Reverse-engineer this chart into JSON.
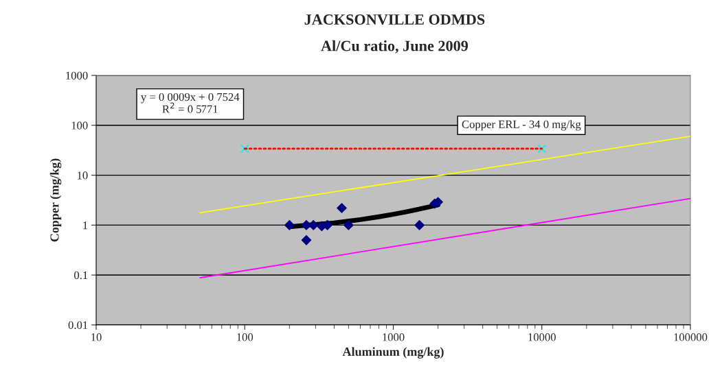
{
  "chart_data": {
    "type": "scatter",
    "title": "JACKSONVILLE ODMDS",
    "subtitle": "Al/Cu ratio, June 2009",
    "xlabel": "Aluminum (mg/kg)",
    "ylabel": "Copper (mg/kg)",
    "log": "xy",
    "xlim": [
      10,
      100000
    ],
    "ylim": [
      0.01,
      1000
    ],
    "xticks": [
      10,
      100,
      1000,
      10000,
      100000
    ],
    "yticks": [
      0.01,
      0.1,
      1,
      10,
      100,
      1000
    ],
    "grid": "y",
    "legend": false,
    "series": [
      {
        "type": "line",
        "color": "#ffff00",
        "line_style": "solid",
        "marker": "none",
        "x": [
          50,
          100000
        ],
        "values": [
          1.77,
          60
        ]
      },
      {
        "type": "line",
        "color": "#ff00ff",
        "line_style": "solid",
        "marker": "none",
        "x": [
          50,
          100000
        ],
        "values": [
          0.088,
          3.4
        ]
      },
      {
        "type": "line",
        "color": "#ff0000",
        "line_style": "dotted",
        "marker": "none",
        "x": [
          100,
          10000
        ],
        "values": [
          34,
          34
        ]
      },
      {
        "color": "#33e6e6",
        "marker": "cross",
        "x": [
          100,
          10000
        ],
        "values": [
          34,
          34
        ]
      },
      {
        "type": "line",
        "color": "#000000",
        "line_style": "solid",
        "marker": "none",
        "x": [
          200,
          400,
          600,
          800,
          1000,
          1200,
          1400,
          1600,
          1800,
          2000
        ],
        "values": [
          0.93,
          1.11,
          1.29,
          1.47,
          1.65,
          1.83,
          2.01,
          2.19,
          2.37,
          2.55
        ]
      },
      {
        "color": "#000080",
        "marker": "diamond",
        "x": [
          200,
          250,
          260,
          260,
          290,
          330,
          360,
          450,
          500,
          1500,
          1900,
          2000
        ],
        "values": [
          1,
          null,
          1,
          0.5,
          1,
          0.95,
          1,
          2.2,
          1,
          1,
          2.7,
          2.9
        ]
      }
    ],
    "annotations": [
      "y = 0 0009x + 0 7524\nR$^{2}$ = 0 5771",
      "Copper ERL - 34 0 mg/kg"
    ]
  }
}
